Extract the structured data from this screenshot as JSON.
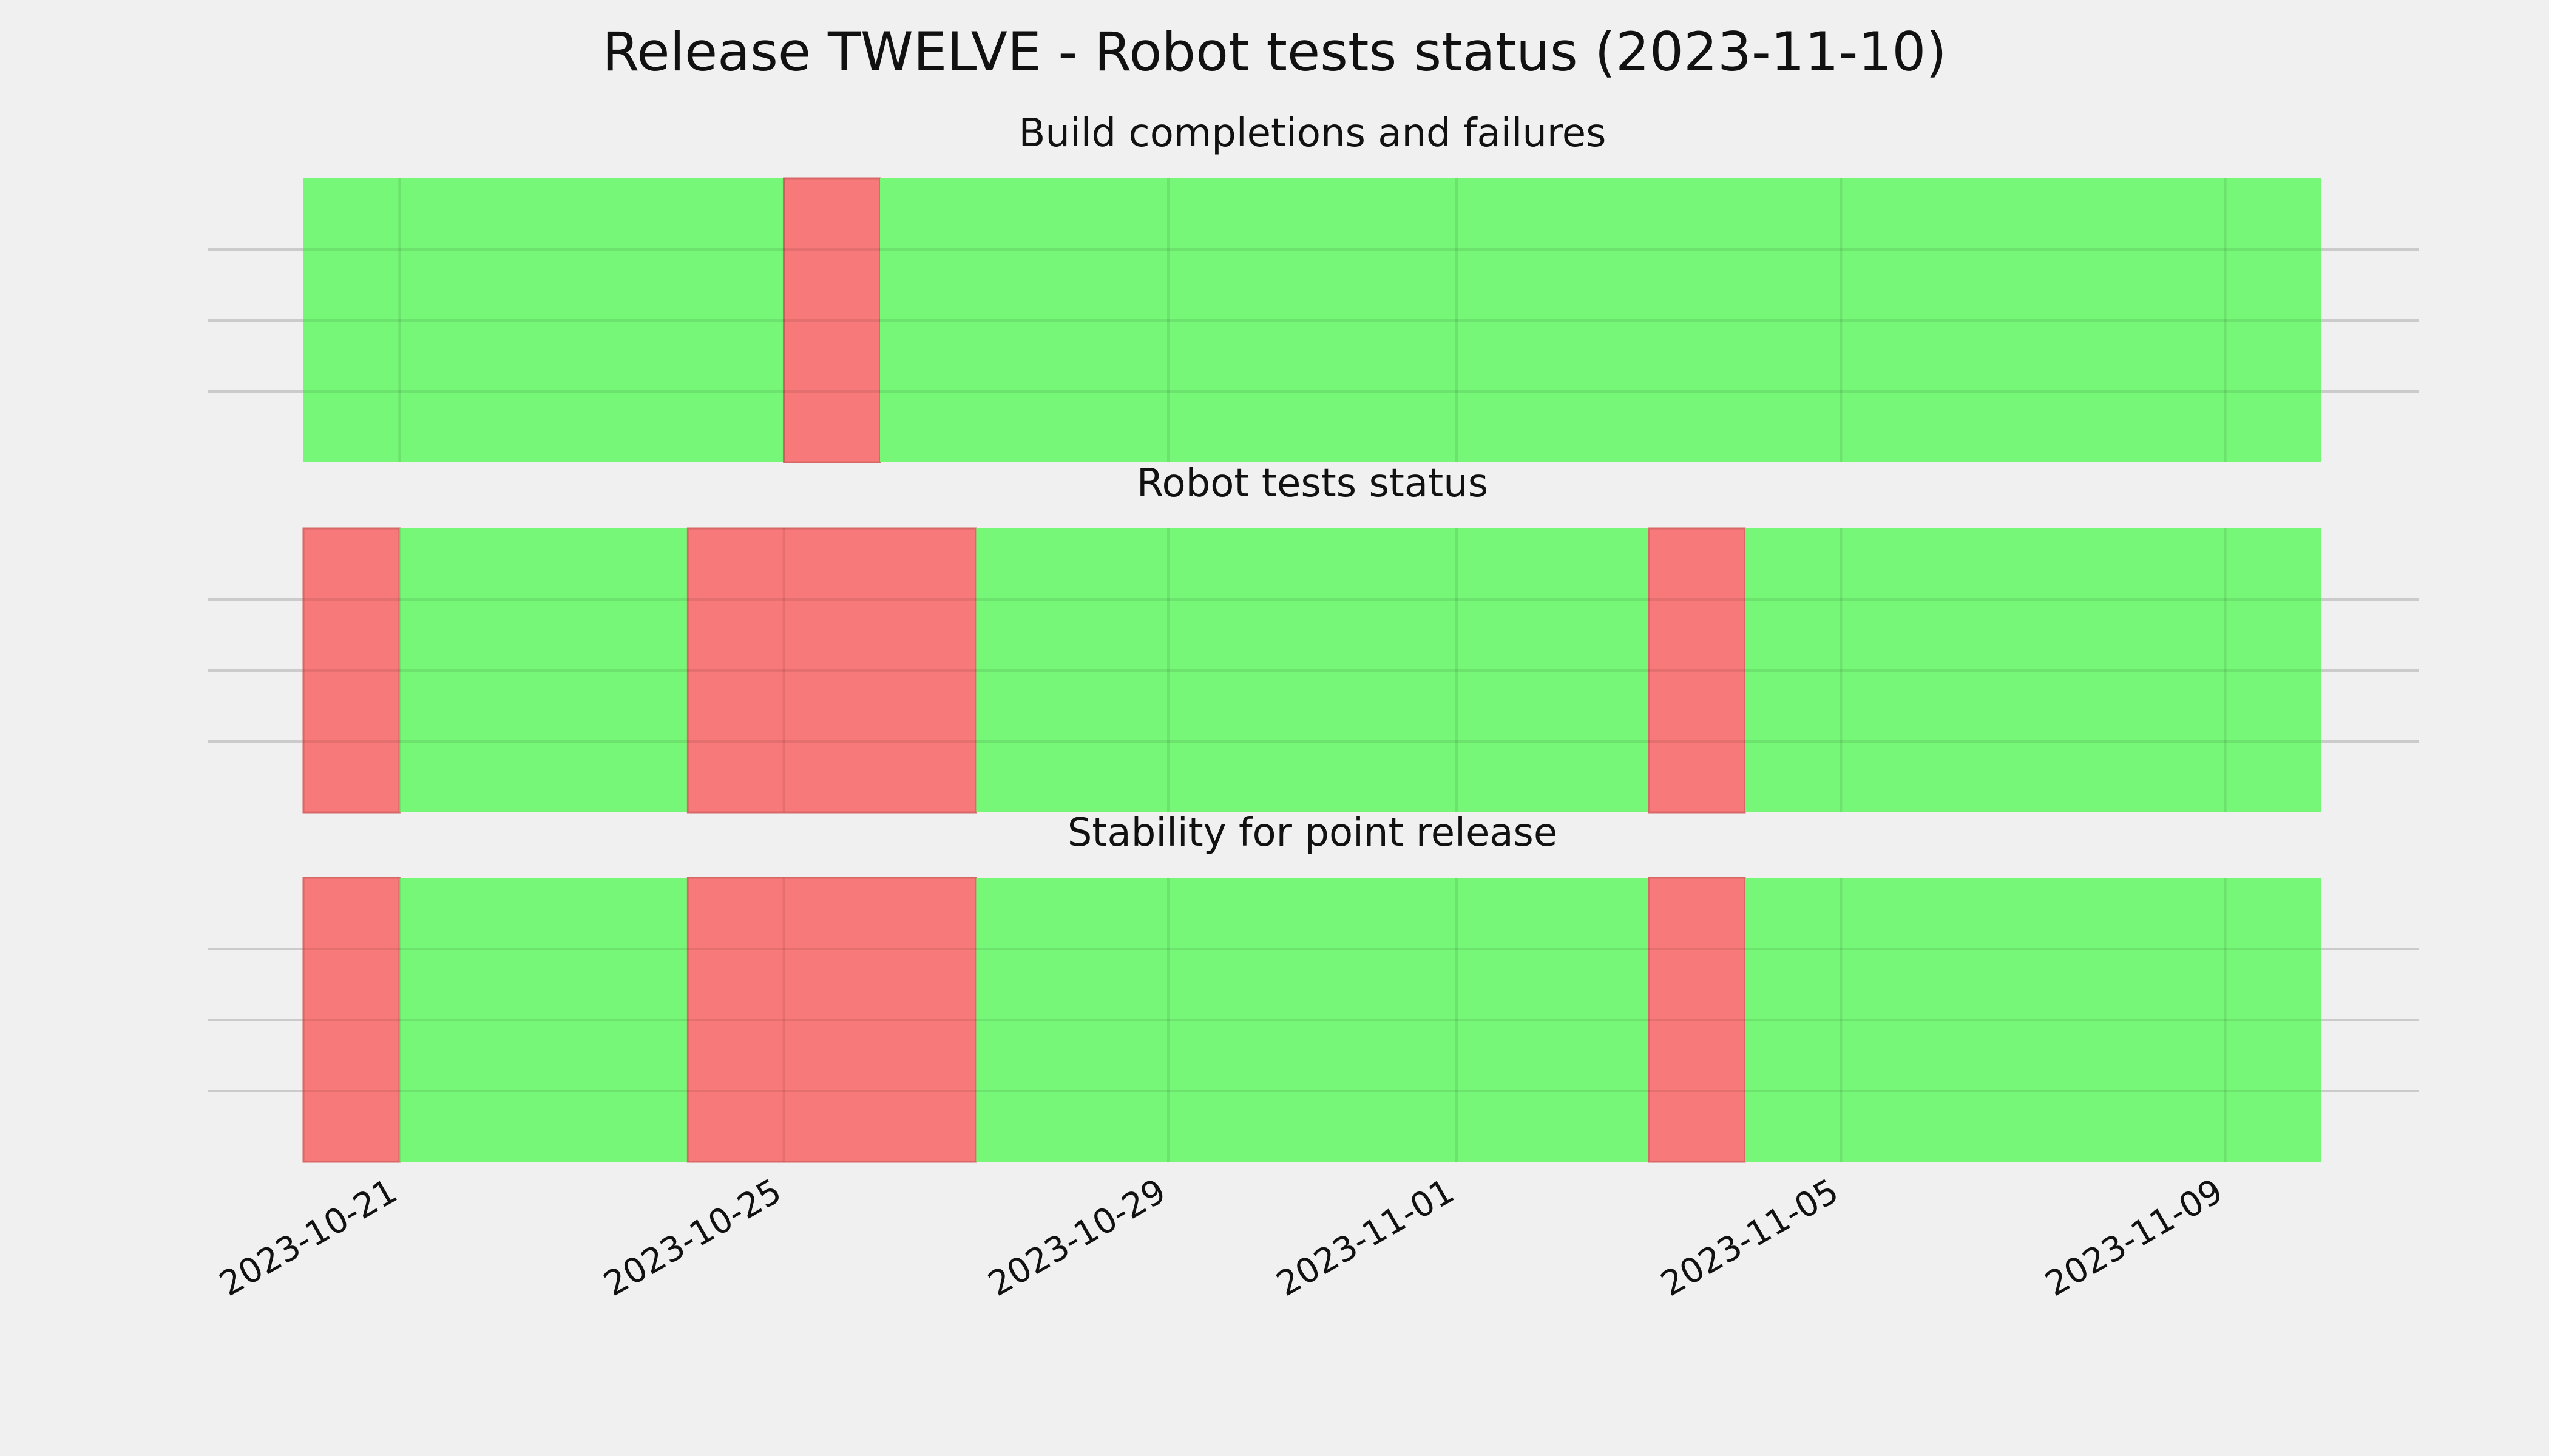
{
  "chart_data": {
    "type": "timeline",
    "title": "Release TWELVE - Robot tests status (2023-11-10)",
    "x_type": "date",
    "x_range": [
      "2023-10-20",
      "2023-11-10"
    ],
    "x_ticks": [
      "2023-10-21",
      "2023-10-25",
      "2023-10-29",
      "2023-11-01",
      "2023-11-05",
      "2023-11-09"
    ],
    "grid": true,
    "colors": {
      "pass": "#76f777",
      "fail": "#f87979",
      "background": "#f0f0f0",
      "grid": "#cbcbcb",
      "grid_on_bar": "#5fd860"
    },
    "panels": [
      {
        "title": "Build completions and failures",
        "segments": [
          {
            "start": "2023-10-20",
            "end": "2023-10-25",
            "status": "pass"
          },
          {
            "start": "2023-10-25",
            "end": "2023-10-26",
            "status": "fail"
          },
          {
            "start": "2023-10-26",
            "end": "2023-11-10",
            "status": "pass"
          }
        ]
      },
      {
        "title": "Robot tests status",
        "segments": [
          {
            "start": "2023-10-20",
            "end": "2023-10-21",
            "status": "fail"
          },
          {
            "start": "2023-10-21",
            "end": "2023-10-24",
            "status": "pass"
          },
          {
            "start": "2023-10-24",
            "end": "2023-10-27",
            "status": "fail"
          },
          {
            "start": "2023-10-27",
            "end": "2023-11-03",
            "status": "pass"
          },
          {
            "start": "2023-11-03",
            "end": "2023-11-04",
            "status": "fail"
          },
          {
            "start": "2023-11-04",
            "end": "2023-11-10",
            "status": "pass"
          }
        ]
      },
      {
        "title": "Stability for point release",
        "segments": [
          {
            "start": "2023-10-20",
            "end": "2023-10-21",
            "status": "fail"
          },
          {
            "start": "2023-10-21",
            "end": "2023-10-24",
            "status": "pass"
          },
          {
            "start": "2023-10-24",
            "end": "2023-10-27",
            "status": "fail"
          },
          {
            "start": "2023-10-27",
            "end": "2023-11-03",
            "status": "pass"
          },
          {
            "start": "2023-11-03",
            "end": "2023-11-04",
            "status": "fail"
          },
          {
            "start": "2023-11-04",
            "end": "2023-11-10",
            "status": "pass"
          }
        ]
      }
    ]
  }
}
